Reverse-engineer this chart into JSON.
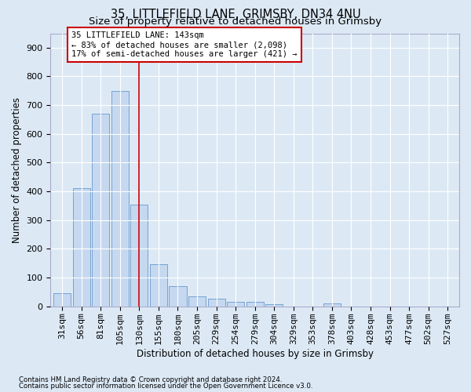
{
  "title1": "35, LITTLEFIELD LANE, GRIMSBY, DN34 4NU",
  "title2": "Size of property relative to detached houses in Grimsby",
  "xlabel": "Distribution of detached houses by size in Grimsby",
  "ylabel": "Number of detached properties",
  "footnote1": "Contains HM Land Registry data © Crown copyright and database right 2024.",
  "footnote2": "Contains public sector information licensed under the Open Government Licence v3.0.",
  "bar_labels": [
    "31sqm",
    "56sqm",
    "81sqm",
    "105sqm",
    "130sqm",
    "155sqm",
    "180sqm",
    "205sqm",
    "229sqm",
    "254sqm",
    "279sqm",
    "304sqm",
    "329sqm",
    "353sqm",
    "378sqm",
    "403sqm",
    "428sqm",
    "453sqm",
    "477sqm",
    "502sqm",
    "527sqm"
  ],
  "bar_values": [
    47,
    410,
    670,
    750,
    355,
    148,
    70,
    35,
    27,
    17,
    17,
    8,
    0,
    0,
    10,
    0,
    0,
    0,
    0,
    0,
    0
  ],
  "bar_color": "#c5d8ef",
  "bar_edge_color": "#6699cc",
  "vline_x": 4.5,
  "vline_color": "#cc0000",
  "annotation_text": "35 LITTLEFIELD LANE: 143sqm\n← 83% of detached houses are smaller (2,098)\n17% of semi-detached houses are larger (421) →",
  "annotation_box_facecolor": "#ffffff",
  "annotation_box_edgecolor": "#cc0000",
  "ylim": [
    0,
    950
  ],
  "yticks": [
    0,
    100,
    200,
    300,
    400,
    500,
    600,
    700,
    800,
    900
  ],
  "bg_color": "#dce9f5",
  "grid_color": "#ffffff",
  "title1_fontsize": 10.5,
  "title2_fontsize": 9.5,
  "xlabel_fontsize": 8.5,
  "ylabel_fontsize": 8.5,
  "tick_fontsize": 8,
  "annotation_fontsize": 7.5,
  "footnote_fontsize": 6.2
}
